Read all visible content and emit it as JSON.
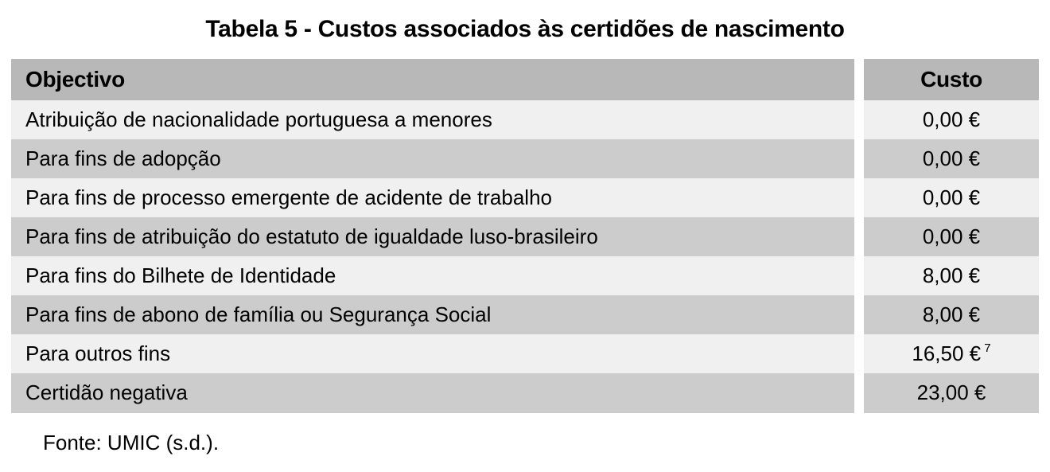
{
  "title": "Tabela 5 - Custos associados às certidões de nascimento",
  "columns": {
    "objective": "Objectivo",
    "cost": "Custo"
  },
  "colors": {
    "header_bg": "#b8b8b8",
    "row_even_bg": "#f0f0f0",
    "row_odd_bg": "#cccccc",
    "text": "#000000"
  },
  "rows": [
    {
      "objective": "Atribuição de nacionalidade portuguesa a menores",
      "cost": "0,00 €",
      "note": ""
    },
    {
      "objective": "Para fins de adopção",
      "cost": "0,00 €",
      "note": ""
    },
    {
      "objective": "Para fins de processo emergente de acidente de trabalho",
      "cost": "0,00 €",
      "note": ""
    },
    {
      "objective": "Para fins de atribuição do estatuto de igualdade luso-brasileiro",
      "cost": "0,00 €",
      "note": ""
    },
    {
      "objective": "Para fins do Bilhete de Identidade",
      "cost": "8,00 €",
      "note": ""
    },
    {
      "objective": "Para fins de abono de família ou Segurança Social",
      "cost": "8,00 €",
      "note": ""
    },
    {
      "objective": "Para outros fins",
      "cost": "16,50 €",
      "note": "7"
    },
    {
      "objective": "Certidão negativa",
      "cost": "23,00 €",
      "note": ""
    }
  ],
  "source": "Fonte: UMIC (s.d.)."
}
